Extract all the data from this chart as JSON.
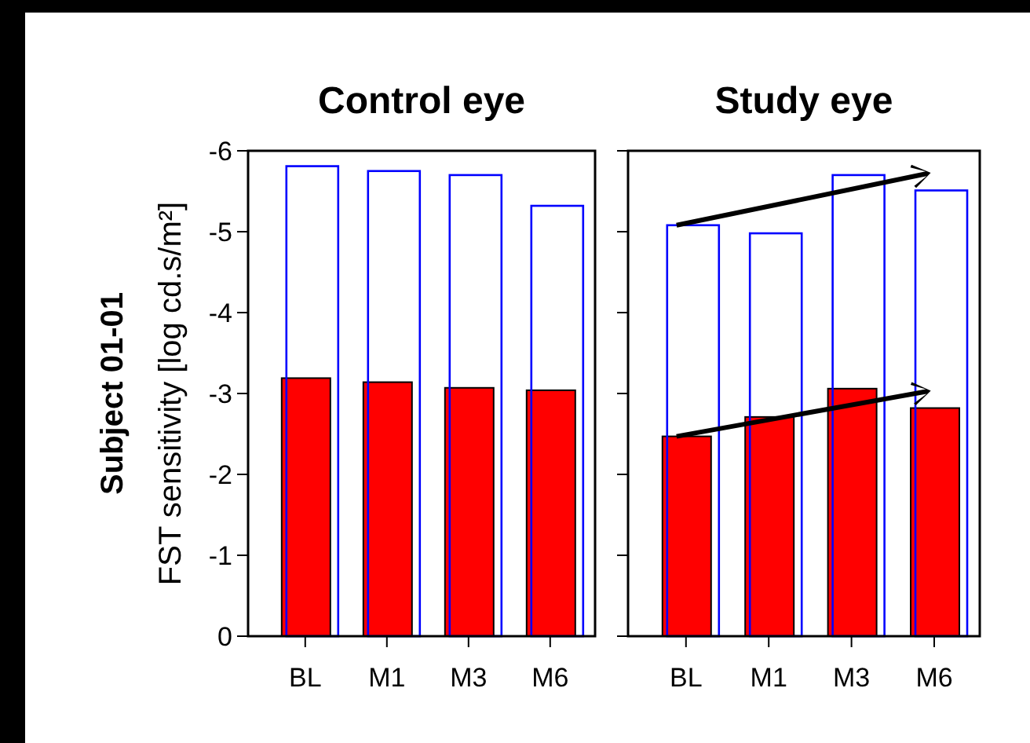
{
  "chart_data": [
    {
      "type": "bar",
      "title": "Control eye",
      "ylabel": "FST sensitivity [log cd.s/m²]",
      "annotations": [
        "Subject 01-01"
      ],
      "categories": [
        "BL",
        "M1",
        "M3",
        "M6"
      ],
      "series": [
        {
          "color": "#0000ff",
          "values": [
            -5.81,
            -5.75,
            -5.7,
            -5.32
          ]
        },
        {
          "color": "#ff0000",
          "values": [
            -3.19,
            -3.14,
            -3.07,
            -3.04
          ]
        }
      ],
      "ylim": [
        0,
        -6
      ],
      "yticks": [
        -6,
        -5,
        -4,
        -3,
        -2,
        -1,
        0
      ]
    },
    {
      "type": "bar",
      "title": "Study eye",
      "categories": [
        "BL",
        "M1",
        "M3",
        "M6"
      ],
      "series": [
        {
          "color": "#0000ff",
          "values": [
            -5.08,
            -4.98,
            -5.7,
            -5.51
          ]
        },
        {
          "color": "#ff0000",
          "values": [
            -2.47,
            -2.71,
            -3.06,
            -2.82
          ]
        }
      ],
      "ylim": [
        0,
        -6
      ],
      "yticks": [
        -6,
        -5,
        -4,
        -3,
        -2,
        -1,
        0
      ],
      "tick_labels": "x"
    }
  ]
}
